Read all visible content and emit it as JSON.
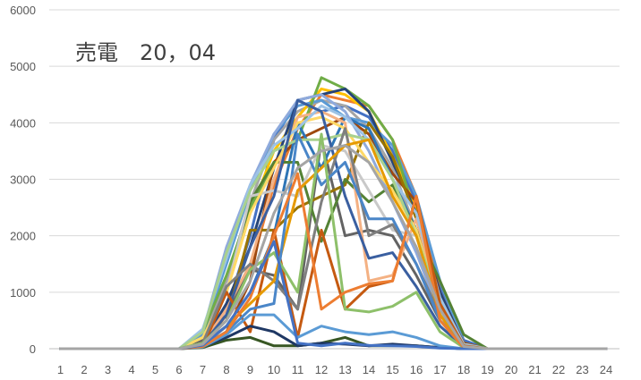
{
  "chart_data": {
    "type": "line",
    "title": "売電　20，04",
    "xlabel": "",
    "ylabel": "",
    "x": [
      1,
      2,
      3,
      4,
      5,
      6,
      7,
      8,
      9,
      10,
      11,
      12,
      13,
      14,
      15,
      16,
      17,
      18,
      19,
      20,
      21,
      22,
      23,
      24
    ],
    "ylim": [
      0,
      6000
    ],
    "yticks": [
      0,
      1000,
      2000,
      3000,
      4000,
      5000,
      6000
    ],
    "grid": true,
    "legend": "none",
    "series": [
      {
        "color": "#4472C4",
        "values": [
          0,
          0,
          0,
          0,
          0,
          0,
          100,
          700,
          2000,
          3700,
          4400,
          4200,
          4300,
          4100,
          3500,
          2600,
          1100,
          150,
          0,
          0,
          0,
          0,
          0,
          0
        ]
      },
      {
        "color": "#ED7D31",
        "values": [
          0,
          0,
          0,
          0,
          0,
          0,
          50,
          600,
          1400,
          2900,
          3900,
          4500,
          4400,
          4300,
          3700,
          2700,
          1000,
          100,
          0,
          0,
          0,
          0,
          0,
          0
        ]
      },
      {
        "color": "#A5A5A5",
        "values": [
          0,
          0,
          0,
          0,
          0,
          0,
          200,
          1200,
          2600,
          3700,
          4200,
          4400,
          4300,
          3900,
          3200,
          2100,
          700,
          50,
          0,
          0,
          0,
          0,
          0,
          0
        ]
      },
      {
        "color": "#FFC000",
        "values": [
          0,
          0,
          0,
          0,
          0,
          0,
          150,
          1000,
          2400,
          3500,
          4100,
          4600,
          4500,
          4200,
          3400,
          2500,
          900,
          80,
          0,
          0,
          0,
          0,
          0,
          0
        ]
      },
      {
        "color": "#5B9BD5",
        "values": [
          0,
          0,
          0,
          0,
          0,
          0,
          250,
          1500,
          2800,
          3800,
          4300,
          4400,
          4100,
          4000,
          3600,
          2700,
          1200,
          100,
          0,
          0,
          0,
          0,
          0,
          0
        ]
      },
      {
        "color": "#70AD47",
        "values": [
          0,
          0,
          0,
          0,
          0,
          0,
          300,
          1300,
          2500,
          3300,
          3700,
          4800,
          4600,
          4300,
          3700,
          2300,
          800,
          100,
          0,
          0,
          0,
          0,
          0,
          0
        ]
      },
      {
        "color": "#264478",
        "values": [
          0,
          0,
          0,
          0,
          0,
          0,
          100,
          800,
          1800,
          3200,
          4400,
          4500,
          4600,
          4200,
          3300,
          2400,
          1000,
          80,
          0,
          0,
          0,
          0,
          0,
          0
        ]
      },
      {
        "color": "#9E480E",
        "values": [
          0,
          0,
          0,
          0,
          0,
          0,
          50,
          300,
          1200,
          3300,
          3700,
          3900,
          4100,
          3800,
          3100,
          2600,
          900,
          100,
          0,
          0,
          0,
          0,
          0,
          0
        ]
      },
      {
        "color": "#636363",
        "values": [
          0,
          0,
          0,
          0,
          0,
          0,
          150,
          600,
          1400,
          1300,
          700,
          3700,
          2000,
          2100,
          2000,
          1300,
          500,
          50,
          0,
          0,
          0,
          0,
          0,
          0
        ]
      },
      {
        "color": "#997300",
        "values": [
          0,
          0,
          0,
          0,
          0,
          0,
          100,
          500,
          2100,
          2100,
          2500,
          2700,
          2900,
          4000,
          3400,
          2300,
          800,
          80,
          0,
          0,
          0,
          0,
          0,
          0
        ]
      },
      {
        "color": "#2E75B6",
        "values": [
          0,
          0,
          0,
          0,
          0,
          0,
          80,
          400,
          1000,
          2000,
          4000,
          3200,
          4100,
          3900,
          3000,
          2100,
          900,
          50,
          0,
          0,
          0,
          0,
          0,
          0
        ]
      },
      {
        "color": "#548235",
        "values": [
          0,
          0,
          0,
          0,
          0,
          0,
          200,
          1000,
          2600,
          3300,
          3300,
          1900,
          3000,
          2600,
          2900,
          2100,
          1200,
          250,
          0,
          0,
          0,
          0,
          0,
          0
        ]
      },
      {
        "color": "#8FAADC",
        "values": [
          0,
          0,
          0,
          0,
          0,
          0,
          300,
          1800,
          2900,
          3800,
          4400,
          4500,
          4200,
          3500,
          2600,
          1700,
          600,
          50,
          0,
          0,
          0,
          0,
          0,
          0
        ]
      },
      {
        "color": "#F4B183",
        "values": [
          0,
          0,
          0,
          0,
          0,
          0,
          100,
          700,
          1500,
          3000,
          4100,
          4200,
          4000,
          1200,
          1300,
          2300,
          800,
          50,
          0,
          0,
          0,
          0,
          0,
          0
        ]
      },
      {
        "color": "#C9C9C9",
        "values": [
          0,
          0,
          0,
          0,
          0,
          0,
          200,
          1000,
          2700,
          2800,
          2700,
          3600,
          3500,
          2800,
          2100,
          2000,
          700,
          50,
          0,
          0,
          0,
          0,
          0,
          0
        ]
      },
      {
        "color": "#FFD966",
        "values": [
          0,
          0,
          0,
          0,
          0,
          0,
          200,
          1000,
          2400,
          3200,
          4000,
          4100,
          3900,
          3300,
          2800,
          2100,
          700,
          50,
          0,
          0,
          0,
          0,
          0,
          0
        ]
      },
      {
        "color": "#9DC3E6",
        "values": [
          0,
          0,
          0,
          0,
          0,
          0,
          350,
          1600,
          2900,
          3600,
          3900,
          4300,
          4100,
          3700,
          3000,
          2400,
          900,
          80,
          0,
          0,
          0,
          0,
          0,
          0
        ]
      },
      {
        "color": "#A9D18E",
        "values": [
          0,
          0,
          0,
          0,
          0,
          0,
          300,
          1700,
          2800,
          3500,
          3700,
          3700,
          3800,
          3700,
          3000,
          2000,
          800,
          50,
          0,
          0,
          0,
          0,
          0,
          0
        ]
      },
      {
        "color": "#3A5FA0",
        "values": [
          0,
          0,
          0,
          0,
          0,
          0,
          80,
          600,
          1800,
          2700,
          4400,
          4200,
          2700,
          1600,
          1700,
          1100,
          400,
          30,
          0,
          0,
          0,
          0,
          0,
          0
        ]
      },
      {
        "color": "#C55A11",
        "values": [
          0,
          0,
          0,
          0,
          0,
          0,
          30,
          1000,
          300,
          2100,
          200,
          2100,
          700,
          1100,
          1200,
          2700,
          800,
          50,
          0,
          0,
          0,
          0,
          0,
          0
        ]
      },
      {
        "color": "#7F7F7F",
        "values": [
          0,
          0,
          0,
          0,
          0,
          0,
          100,
          1100,
          1500,
          1200,
          700,
          2600,
          3900,
          2000,
          2200,
          1500,
          600,
          30,
          0,
          0,
          0,
          0,
          0,
          0
        ]
      },
      {
        "color": "#E69A00",
        "values": [
          0,
          0,
          0,
          0,
          0,
          0,
          50,
          400,
          800,
          1200,
          2800,
          3200,
          3600,
          3700,
          2700,
          2000,
          600,
          30,
          0,
          0,
          0,
          0,
          0,
          0
        ]
      },
      {
        "color": "#4A86C8",
        "values": [
          0,
          0,
          0,
          0,
          0,
          0,
          50,
          300,
          700,
          800,
          3800,
          2900,
          3300,
          2300,
          2300,
          1500,
          500,
          30,
          0,
          0,
          0,
          0,
          0,
          0
        ]
      },
      {
        "color": "#375623",
        "values": [
          0,
          0,
          0,
          0,
          0,
          0,
          20,
          150,
          200,
          50,
          50,
          100,
          200,
          50,
          50,
          50,
          20,
          0,
          0,
          0,
          0,
          0,
          0,
          0
        ]
      },
      {
        "color": "#1F3864",
        "values": [
          0,
          0,
          0,
          0,
          0,
          0,
          40,
          200,
          400,
          300,
          50,
          100,
          80,
          50,
          80,
          50,
          20,
          0,
          0,
          0,
          0,
          0,
          0,
          0
        ]
      },
      {
        "color": "#5B9BD5",
        "values": [
          0,
          0,
          0,
          0,
          0,
          0,
          30,
          250,
          600,
          600,
          200,
          400,
          300,
          250,
          300,
          200,
          50,
          0,
          0,
          0,
          0,
          0,
          0,
          0
        ]
      },
      {
        "color": "#8EC06A",
        "values": [
          0,
          0,
          0,
          0,
          0,
          0,
          100,
          500,
          1400,
          1700,
          1000,
          3800,
          700,
          650,
          750,
          1000,
          300,
          20,
          0,
          0,
          0,
          0,
          0,
          0
        ]
      },
      {
        "color": "#ED7D31",
        "values": [
          0,
          0,
          0,
          0,
          0,
          0,
          40,
          300,
          900,
          2000,
          3100,
          700,
          1000,
          1150,
          1200,
          2700,
          500,
          20,
          0,
          0,
          0,
          0,
          0,
          0
        ]
      },
      {
        "color": "#4472C4",
        "values": [
          0,
          0,
          0,
          0,
          0,
          0,
          60,
          400,
          1000,
          1900,
          100,
          50,
          100,
          60,
          50,
          40,
          10,
          0,
          0,
          0,
          0,
          0,
          0,
          0
        ]
      },
      {
        "color": "#A5A5A5",
        "values": [
          0,
          0,
          0,
          0,
          0,
          0,
          80,
          500,
          1200,
          2400,
          3200,
          3500,
          3600,
          3300,
          2600,
          1800,
          700,
          40,
          0,
          0,
          0,
          0,
          0,
          0
        ]
      }
    ]
  }
}
